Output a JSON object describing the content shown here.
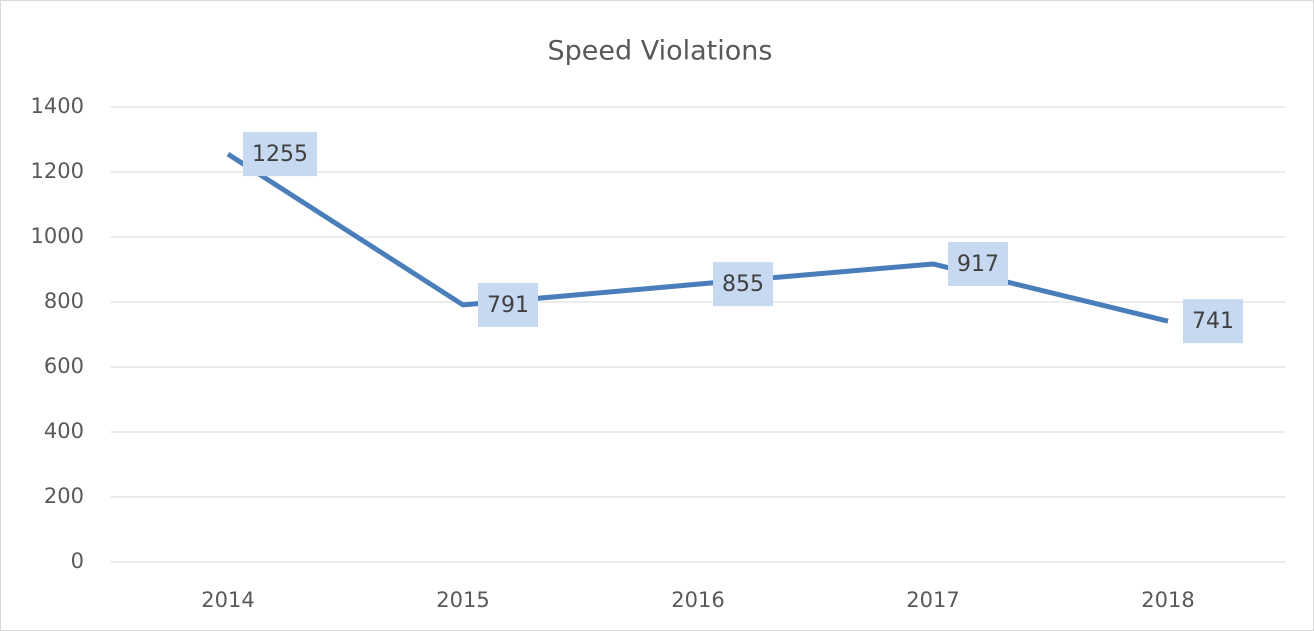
{
  "chart_data": {
    "type": "line",
    "title": "Speed Violations",
    "categories": [
      "2014",
      "2015",
      "2016",
      "2017",
      "2018"
    ],
    "series": [
      {
        "name": "Speed Violations",
        "color": "#4a7ebb",
        "values": [
          1255,
          791,
          855,
          917,
          741
        ]
      }
    ],
    "ylim": [
      0,
      1400
    ],
    "yticks": [
      0,
      200,
      400,
      600,
      800,
      1000,
      1200,
      1400
    ],
    "grid": true
  }
}
